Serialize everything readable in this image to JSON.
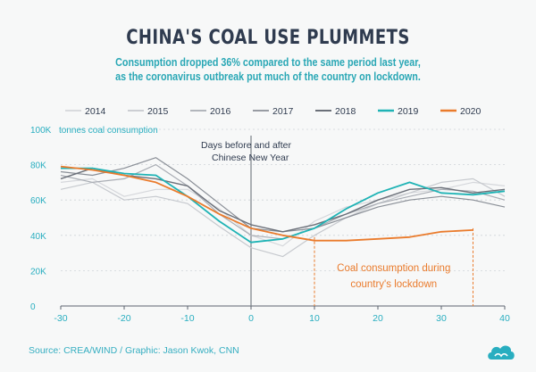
{
  "title": "CHINA'S COAL USE PLUMMETS",
  "subtitle_line1": "Consumption dropped 36% compared to the same period last year,",
  "subtitle_line2": "as the coronavirus outbreak put much of the country on lockdown.",
  "source": "Source: CREA/WIND / Graphic: Jason Kwok, CNN",
  "logo_icon": "cnn-cloud-icon",
  "chart_data": {
    "type": "line",
    "ylabel": "tonnes coal consumption",
    "xlim": [
      -30,
      40
    ],
    "ylim": [
      0,
      100
    ],
    "x_ticks": [
      -30,
      -20,
      -10,
      0,
      10,
      20,
      30,
      40
    ],
    "y_ticks": [
      0,
      20,
      40,
      60,
      80,
      100
    ],
    "y_tick_labels": [
      "0",
      "20K",
      "40K",
      "60K",
      "80K",
      "100K"
    ],
    "grid": true,
    "legend_placement": "top",
    "vline_label_1": "Days before and after",
    "vline_label_2": "Chinese New Year",
    "lockdown_label_1": "Coal consumption during",
    "lockdown_label_2": "country's lockdown",
    "lockdown_range": [
      10,
      35
    ],
    "x": [
      -30,
      -25,
      -20,
      -15,
      -10,
      -5,
      0,
      5,
      10,
      15,
      20,
      25,
      30,
      35,
      40
    ],
    "series": [
      {
        "name": "2014",
        "color": "#d5d7db",
        "width": 1.2,
        "values": [
          70,
          72,
          62,
          66,
          66,
          55,
          40,
          34,
          48,
          56,
          60,
          64,
          66,
          70,
          68
        ]
      },
      {
        "name": "2015",
        "color": "#c6c9ce",
        "width": 1.2,
        "values": [
          66,
          70,
          60,
          62,
          58,
          45,
          33,
          28,
          40,
          50,
          58,
          64,
          70,
          72,
          62
        ]
      },
      {
        "name": "2016",
        "color": "#a9adb4",
        "width": 1.2,
        "values": [
          74,
          70,
          72,
          80,
          68,
          52,
          40,
          38,
          44,
          52,
          58,
          62,
          66,
          65,
          60
        ]
      },
      {
        "name": "2017",
        "color": "#8a8f97",
        "width": 1.2,
        "values": [
          76,
          74,
          78,
          84,
          72,
          58,
          44,
          42,
          44,
          50,
          56,
          60,
          62,
          60,
          56
        ]
      },
      {
        "name": "2018",
        "color": "#6b7079",
        "width": 1.4,
        "values": [
          72,
          78,
          74,
          72,
          68,
          54,
          46,
          42,
          46,
          52,
          60,
          66,
          67,
          64,
          66
        ]
      },
      {
        "name": "2019",
        "color": "#1fb3b5",
        "width": 1.8,
        "values": [
          78,
          78,
          75,
          74,
          62,
          48,
          36,
          38,
          44,
          55,
          64,
          70,
          64,
          63,
          65
        ]
      },
      {
        "name": "2020",
        "color": "#ea7b2c",
        "width": 1.8,
        "values": [
          79,
          77,
          74,
          70,
          62,
          52,
          44,
          40,
          37,
          37,
          38,
          39,
          42,
          43,
          null
        ]
      }
    ]
  }
}
